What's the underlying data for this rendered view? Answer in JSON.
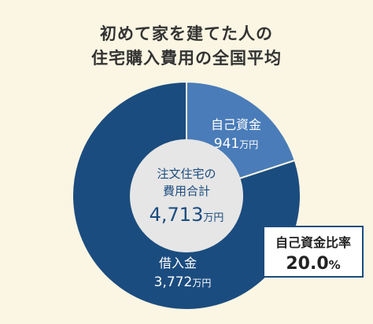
{
  "title": {
    "line1": "初めて家を建てた人の",
    "line2": "住宅購入費用の全国平均"
  },
  "chart_data": {
    "type": "pie",
    "categories": [
      "自己資金",
      "借入金"
    ],
    "values": [
      941,
      3772
    ],
    "unit": "万円",
    "total": {
      "label_line1": "注文住宅の",
      "label_line2": "費用合計",
      "value": "4,713"
    },
    "labels": {
      "self_funds_value": "941",
      "loan_value": "3,772"
    },
    "colors": [
      "#4a7cb9",
      "#1b4c7f"
    ]
  },
  "ratio_box": {
    "label": "自己資金比率",
    "value": "20.0",
    "unit": "%"
  }
}
